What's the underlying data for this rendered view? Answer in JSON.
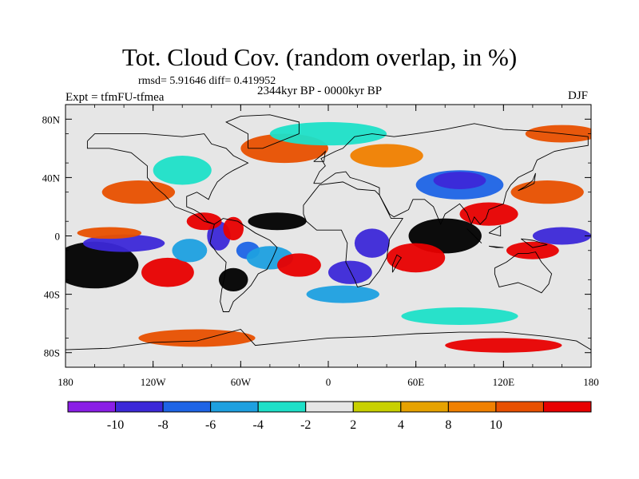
{
  "title": "Tot. Cloud Cov. (random overlap, in %)",
  "stats": "rmsd= 5.91646 diff= 0.419952",
  "period": "2344kyr BP - 0000kyr BP",
  "experiment": "Expt = tfmFU-tfmea",
  "season": "DJF",
  "map": {
    "lon_range": [
      -180,
      180
    ],
    "lat_range": [
      -90,
      90
    ],
    "lon_ticks": [
      {
        "value": -180,
        "label": "180"
      },
      {
        "value": -120,
        "label": "120W"
      },
      {
        "value": -60,
        "label": "60W"
      },
      {
        "value": 0,
        "label": "0"
      },
      {
        "value": 60,
        "label": "60E"
      },
      {
        "value": 120,
        "label": "120E"
      },
      {
        "value": 180,
        "label": "180"
      }
    ],
    "lat_ticks": [
      {
        "value": 80,
        "label": "80N"
      },
      {
        "value": 40,
        "label": "40N"
      },
      {
        "value": 0,
        "label": "0"
      },
      {
        "value": -40,
        "label": "40S"
      },
      {
        "value": -80,
        "label": "80S"
      }
    ],
    "lon_minor_step": 20,
    "lat_minor_step": 20,
    "background_color": "#e6e6e6",
    "fields": [
      {
        "lon": -160,
        "lat": -20,
        "rx": 30,
        "ry": 16,
        "level": 11
      },
      {
        "lon": -140,
        "lat": -5,
        "rx": 28,
        "ry": 6,
        "level": 1
      },
      {
        "lon": -150,
        "lat": 2,
        "rx": 22,
        "ry": 4,
        "level": 9
      },
      {
        "lon": -110,
        "lat": -25,
        "rx": 18,
        "ry": 10,
        "level": 10
      },
      {
        "lon": -95,
        "lat": -10,
        "rx": 12,
        "ry": 8,
        "level": 3
      },
      {
        "lon": -75,
        "lat": 0,
        "rx": 8,
        "ry": 10,
        "level": 1
      },
      {
        "lon": -85,
        "lat": 10,
        "rx": 12,
        "ry": 6,
        "level": 10
      },
      {
        "lon": -65,
        "lat": 5,
        "rx": 7,
        "ry": 8,
        "level": 10
      },
      {
        "lon": -55,
        "lat": -10,
        "rx": 8,
        "ry": 6,
        "level": 2
      },
      {
        "lon": -65,
        "lat": -30,
        "rx": 10,
        "ry": 8,
        "level": 11
      },
      {
        "lon": -40,
        "lat": -15,
        "rx": 16,
        "ry": 8,
        "level": 3
      },
      {
        "lon": -20,
        "lat": -20,
        "rx": 15,
        "ry": 8,
        "level": 10
      },
      {
        "lon": -35,
        "lat": 10,
        "rx": 20,
        "ry": 6,
        "level": 11
      },
      {
        "lon": -130,
        "lat": 30,
        "rx": 25,
        "ry": 8,
        "level": 9
      },
      {
        "lon": -100,
        "lat": 45,
        "rx": 20,
        "ry": 10,
        "level": 4
      },
      {
        "lon": -30,
        "lat": 60,
        "rx": 30,
        "ry": 10,
        "level": 9
      },
      {
        "lon": 0,
        "lat": 70,
        "rx": 40,
        "ry": 8,
        "level": 4
      },
      {
        "lon": 40,
        "lat": 55,
        "rx": 25,
        "ry": 8,
        "level": 8
      },
      {
        "lon": 90,
        "lat": 35,
        "rx": 30,
        "ry": 10,
        "level": 2
      },
      {
        "lon": 90,
        "lat": 38,
        "rx": 18,
        "ry": 6,
        "level": 1
      },
      {
        "lon": 110,
        "lat": 15,
        "rx": 20,
        "ry": 8,
        "level": 10
      },
      {
        "lon": 80,
        "lat": 0,
        "rx": 25,
        "ry": 12,
        "level": 11
      },
      {
        "lon": 60,
        "lat": -15,
        "rx": 20,
        "ry": 10,
        "level": 10
      },
      {
        "lon": 30,
        "lat": -5,
        "rx": 12,
        "ry": 10,
        "level": 1
      },
      {
        "lon": 15,
        "lat": -25,
        "rx": 15,
        "ry": 8,
        "level": 1
      },
      {
        "lon": 10,
        "lat": -40,
        "rx": 25,
        "ry": 6,
        "level": 3
      },
      {
        "lon": 160,
        "lat": 0,
        "rx": 20,
        "ry": 6,
        "level": 1
      },
      {
        "lon": 140,
        "lat": -10,
        "rx": 18,
        "ry": 6,
        "level": 10
      },
      {
        "lon": 150,
        "lat": 30,
        "rx": 25,
        "ry": 8,
        "level": 9
      },
      {
        "lon": 90,
        "lat": -55,
        "rx": 40,
        "ry": 6,
        "level": 4
      },
      {
        "lon": -90,
        "lat": -70,
        "rx": 40,
        "ry": 6,
        "level": 9
      },
      {
        "lon": 120,
        "lat": -75,
        "rx": 40,
        "ry": 5,
        "level": 10
      },
      {
        "lon": -150,
        "lat": 80,
        "rx": 30,
        "ry": 5,
        "level": 5
      },
      {
        "lon": 160,
        "lat": 70,
        "rx": 25,
        "ry": 6,
        "level": 9
      }
    ]
  },
  "colorbar": {
    "colors": [
      "#8a1ee6",
      "#3c28d8",
      "#1e64e6",
      "#1ea0e0",
      "#1ee0c8",
      "#e6e6e6",
      "#c8d000",
      "#e6a200",
      "#f08000",
      "#e85000",
      "#e80000"
    ],
    "labels": [
      "-10",
      "-8",
      "-6",
      "-4",
      "-2",
      "2",
      "4",
      "8",
      "10"
    ]
  }
}
